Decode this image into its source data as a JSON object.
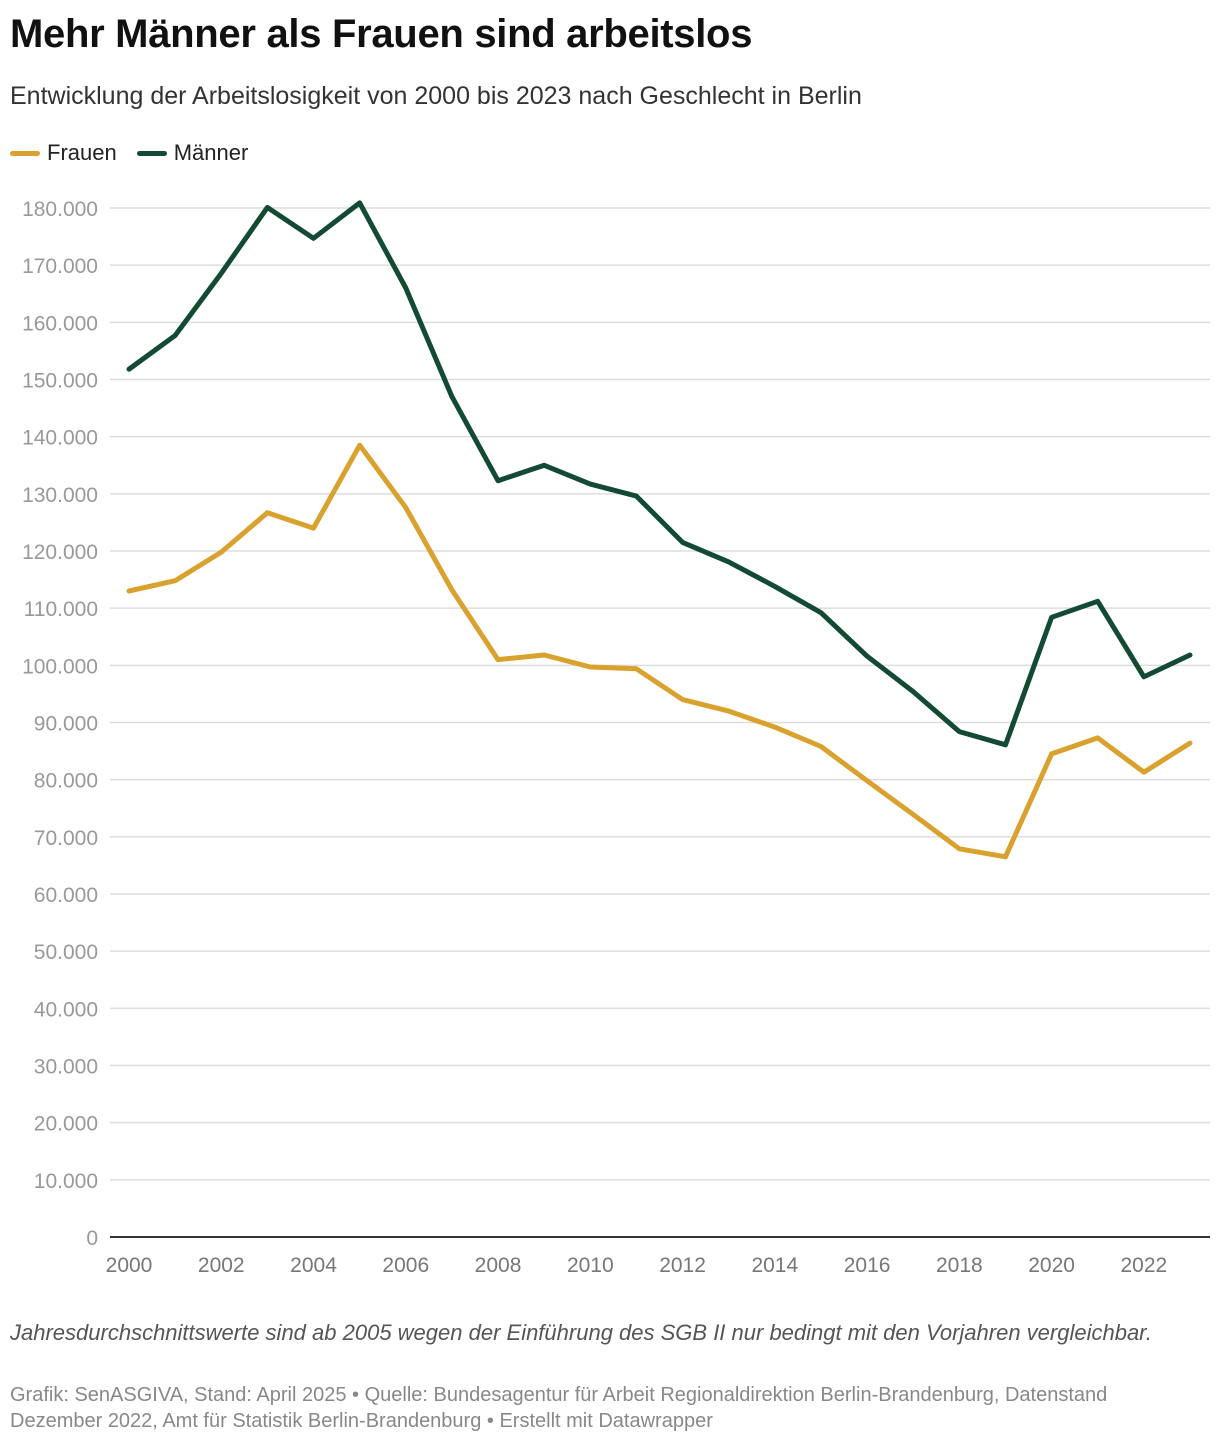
{
  "title": "Mehr Männer als Frauen sind arbeitslos",
  "subtitle": "Entwicklung der Arbeitslosigkeit von 2000 bis 2023 nach Geschlecht in Berlin",
  "note": "Jahresdurchschnittswerte sind ab 2005 wegen der Einführung des SGB II nur bedingt mit den Vorjahren vergleichbar.",
  "source": "Grafik: SenASGIVA, Stand: April 2025 • Quelle: Bundesagentur für Arbeit Regionaldirektion Berlin-Brandenburg, Datenstand Dezember 2022, Amt für Statistik Berlin-Brandenburg • Erstellt mit Datawrapper",
  "colors": {
    "frauen": "#d9a22e",
    "maenner": "#124a34",
    "grid": "#dddddd",
    "axis": "#333333"
  },
  "chart_data": {
    "type": "line",
    "title": "Mehr Männer als Frauen sind arbeitslos",
    "subtitle": "Entwicklung der Arbeitslosigkeit von 2000 bis 2023 nach Geschlecht in Berlin",
    "xlabel": "",
    "ylabel": "",
    "x": [
      2000,
      2001,
      2002,
      2003,
      2004,
      2005,
      2006,
      2007,
      2008,
      2009,
      2010,
      2011,
      2012,
      2013,
      2014,
      2015,
      2016,
      2017,
      2018,
      2019,
      2020,
      2021,
      2022,
      2023
    ],
    "xlim": [
      2000,
      2023
    ],
    "ylim": [
      0,
      180000
    ],
    "xticks": [
      "2000",
      "2002",
      "2004",
      "2006",
      "2008",
      "2010",
      "2012",
      "2014",
      "2016",
      "2018",
      "2020",
      "2022"
    ],
    "yticks": [
      "0",
      "10.000",
      "20.000",
      "30.000",
      "40.000",
      "50.000",
      "60.000",
      "70.000",
      "80.000",
      "90.000",
      "100.000",
      "110.000",
      "120.000",
      "130.000",
      "140.000",
      "150.000",
      "160.000",
      "170.000",
      "180.000"
    ],
    "grid": true,
    "legend_position": "top-left",
    "series": [
      {
        "name": "Frauen",
        "color": "#d9a22e",
        "values": [
          113000,
          114800,
          119800,
          126700,
          124000,
          138500,
          127600,
          113200,
          101000,
          101800,
          99700,
          99400,
          94000,
          92000,
          89200,
          85800,
          79800,
          73900,
          67900,
          66500,
          84500,
          87300,
          81300,
          86400
        ]
      },
      {
        "name": "Männer",
        "color": "#124a34",
        "values": [
          151800,
          157700,
          168600,
          180100,
          174700,
          180900,
          166000,
          147000,
          132300,
          135000,
          131700,
          129600,
          121500,
          118100,
          113800,
          109200,
          101600,
          95400,
          88400,
          86100,
          108400,
          111200,
          98000,
          101800
        ]
      }
    ]
  }
}
